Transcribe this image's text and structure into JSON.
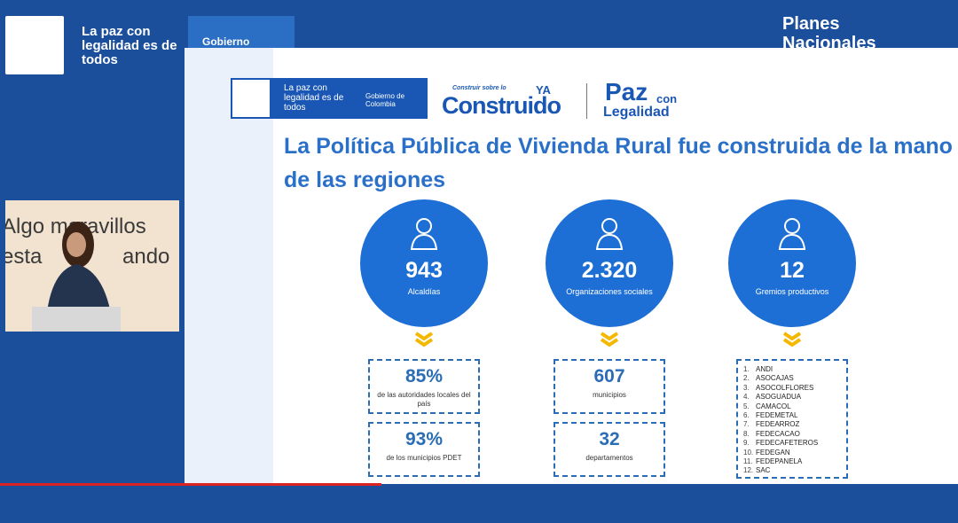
{
  "header": {
    "brand": "La paz con legalidad es de todos",
    "tab": "Gobierno",
    "program": "Planes Nacionales"
  },
  "video": {
    "backdrop_line1": "Algo maravillos",
    "backdrop_line2a": "esta",
    "backdrop_line2b": "ando"
  },
  "slide": {
    "logo_brand": "La paz con legalidad es de todos",
    "logo_gov": "Gobierno de Colombia",
    "construir_small": "Construir sobre lo",
    "construir_ya": "YA",
    "construir_big": "Construido",
    "paz": "Paz",
    "paz_con": "con",
    "paz_legalidad": "Legalidad",
    "title": "La Política Pública de Vivienda Rural fue construida de la mano de las regiones",
    "columns": [
      {
        "number": "943",
        "label": "Alcaldías",
        "boxes": [
          {
            "number": "85%",
            "label": "de las autoridades locales del país"
          },
          {
            "number": "93%",
            "label": "de los municipios PDET"
          }
        ]
      },
      {
        "number": "2.320",
        "label": "Organizaciones sociales",
        "boxes": [
          {
            "number": "607",
            "label": "municipios"
          },
          {
            "number": "32",
            "label": "departamentos"
          }
        ]
      },
      {
        "number": "12",
        "label": "Gremios productivos",
        "list": [
          {
            "n": "1.",
            "name": "ANDI"
          },
          {
            "n": "2.",
            "name": "ASOCAJAS"
          },
          {
            "n": "3.",
            "name": "ASOCOLFLORES"
          },
          {
            "n": "4.",
            "name": "ASOGUADUA"
          },
          {
            "n": "5.",
            "name": "CAMACOL"
          },
          {
            "n": "6.",
            "name": "FEDEMETAL"
          },
          {
            "n": "7.",
            "name": "FEDEARROZ"
          },
          {
            "n": "8.",
            "name": "FEDECACAO"
          },
          {
            "n": "9.",
            "name": "FEDECAFETEROS"
          },
          {
            "n": "10.",
            "name": "FEDEGAN"
          },
          {
            "n": "11.",
            "name": "FEDEPANELA"
          },
          {
            "n": "12.",
            "name": "SAC"
          }
        ]
      }
    ]
  }
}
